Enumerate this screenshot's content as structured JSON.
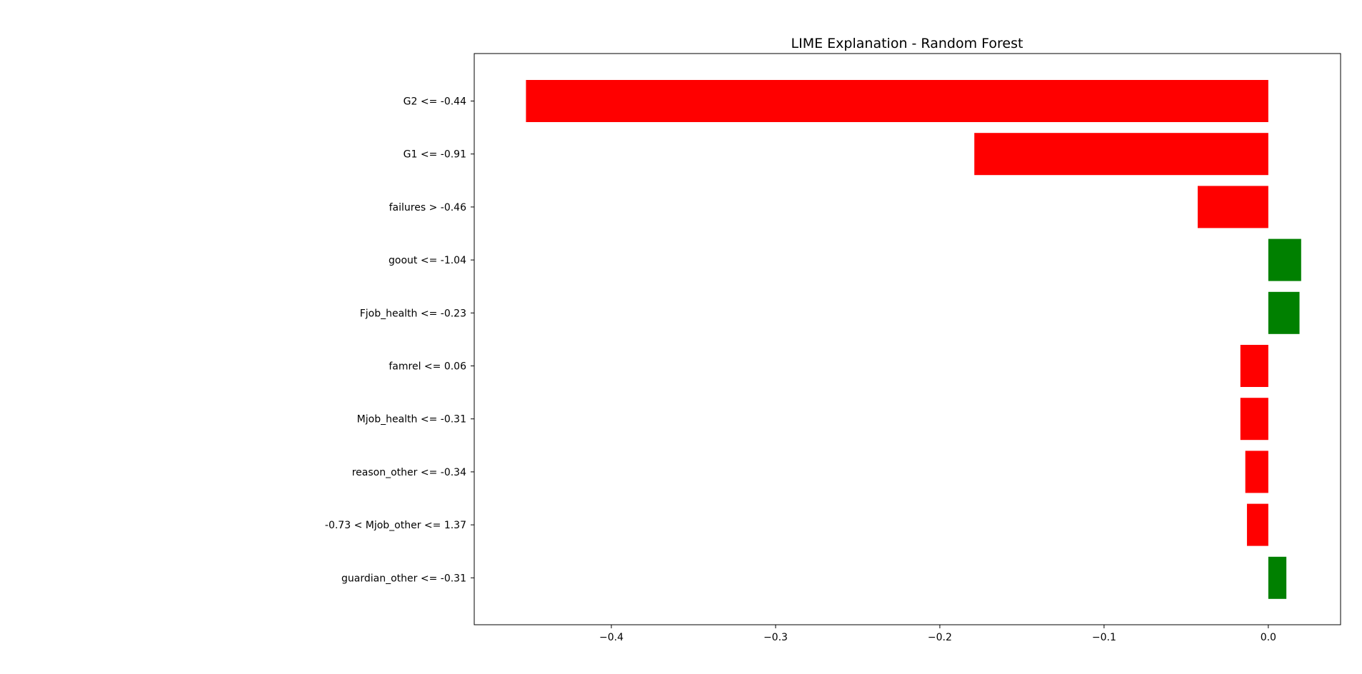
{
  "chart_data": {
    "type": "bar",
    "orientation": "horizontal",
    "title": "LIME Explanation - Random Forest",
    "xlabel": "",
    "ylabel": "",
    "categories": [
      "G2 <= -0.44",
      "G1 <= -0.91",
      "failures > -0.46",
      "goout <= -1.04",
      "Fjob_health <= -0.23",
      "famrel <= 0.06",
      "Mjob_health <= -0.31",
      "reason_other <= -0.34",
      "-0.73 < Mjob_other <= 1.37",
      "guardian_other <= -0.31"
    ],
    "values": [
      -0.452,
      -0.179,
      -0.043,
      0.02,
      0.019,
      -0.017,
      -0.017,
      -0.014,
      -0.013,
      0.011
    ],
    "xlim": [
      -0.4835,
      0.044
    ],
    "xticks": [
      -0.4,
      -0.3,
      -0.2,
      -0.1,
      0.0
    ],
    "xtick_labels": [
      "−0.4",
      "−0.3",
      "−0.2",
      "−0.1",
      "0.0"
    ],
    "grid": false,
    "legend": "none",
    "colors": {
      "positive": "#008000",
      "negative": "#ff0000",
      "axes": "#000000"
    }
  }
}
